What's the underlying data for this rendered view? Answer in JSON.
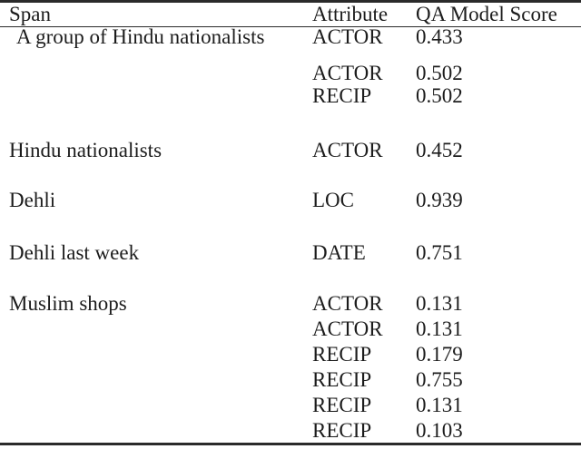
{
  "table": {
    "header": {
      "span": "Span",
      "attribute": "Attribute",
      "score": "QA Model Score"
    },
    "rows": [
      {
        "span": "A group of Hindu nationalists",
        "attribute": "ACTOR",
        "score": "0.433"
      },
      {
        "span": "",
        "attribute": "ACTOR",
        "score": "0.502"
      },
      {
        "span": "",
        "attribute": "RECIP",
        "score": "0.502"
      },
      {
        "span": "Hindu nationalists",
        "attribute": "ACTOR",
        "score": "0.452"
      },
      {
        "span": "Dehli",
        "attribute": "LOC",
        "score": "0.939"
      },
      {
        "span": "Dehli last week",
        "attribute": "DATE",
        "score": "0.751"
      },
      {
        "span": "Muslim shops",
        "attribute": "ACTOR",
        "score": "0.131"
      },
      {
        "span": "",
        "attribute": "ACTOR",
        "score": "0.131"
      },
      {
        "span": "",
        "attribute": "RECIP",
        "score": "0.179"
      },
      {
        "span": "",
        "attribute": "RECIP",
        "score": "0.755"
      },
      {
        "span": "",
        "attribute": "RECIP",
        "score": "0.131"
      },
      {
        "span": "",
        "attribute": "RECIP",
        "score": "0.103"
      }
    ],
    "colors": {
      "text": "#1c1c1c",
      "rule": "#2a2a2a",
      "background": "#ffffff"
    }
  }
}
